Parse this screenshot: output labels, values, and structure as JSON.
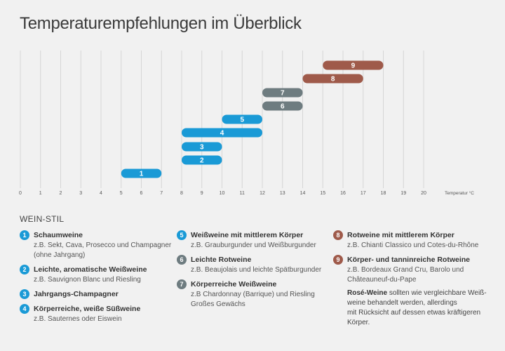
{
  "title": "Temperaturempfehlungen im Überblick",
  "legend_heading": "WEIN-STIL",
  "colors": {
    "blue": "#1a9ad6",
    "green": "#3f9e8c",
    "gray": "#6e7c80",
    "red": "#9f5a4a"
  },
  "chart_data": {
    "type": "bar",
    "orientation": "horizontal-range",
    "x_ticks": [
      "0",
      "1",
      "2",
      "3",
      "4",
      "5",
      "6",
      "7",
      "8",
      "9",
      "10",
      "11",
      "12",
      "13",
      "14",
      "15",
      "16",
      "17",
      "18",
      "19",
      "20"
    ],
    "xlim": [
      0,
      20
    ],
    "xlabel": "Temperatur °C",
    "grid": true,
    "bars": [
      {
        "label": "1",
        "start": 5,
        "end": 7,
        "color": "#1a9ad6"
      },
      {
        "label": "2",
        "start": 8,
        "end": 10,
        "color": "#1a9ad6"
      },
      {
        "label": "3",
        "start": 8,
        "end": 10,
        "color": "#1a9ad6"
      },
      {
        "label": "4",
        "start": 8,
        "end": 12,
        "color": "#1a9ad6"
      },
      {
        "label": "5",
        "start": 10,
        "end": 12,
        "color": "#1a9ad6"
      },
      {
        "label": "6",
        "start": 12,
        "end": 14,
        "color": "#6e7c80"
      },
      {
        "label": "7",
        "start": 12,
        "end": 14,
        "color": "#6e7c80"
      },
      {
        "label": "8",
        "start": 14,
        "end": 17,
        "color": "#9f5a4a"
      },
      {
        "label": "9",
        "start": 15,
        "end": 18,
        "color": "#9f5a4a"
      }
    ]
  },
  "legend": {
    "col1": [
      {
        "num": "1",
        "color": "#1a9ad6",
        "title": "Schaumweine",
        "desc": "z.B. Sekt, Cava, Prosecco und Champagner\n(ohne Jahrgang)"
      },
      {
        "num": "2",
        "color": "#1a9ad6",
        "title": "Leichte, aromatische Weißweine",
        "desc": "z.B. Sauvignon Blanc und Riesling"
      },
      {
        "num": "3",
        "color": "#1a9ad6",
        "title": "Jahrgangs-Champagner",
        "desc": ""
      },
      {
        "num": "4",
        "color": "#1a9ad6",
        "title": "Körperreiche, weiße Süßweine",
        "desc": "z.B. Sauternes oder Eiswein"
      }
    ],
    "col2": [
      {
        "num": "5",
        "color": "#1a9ad6",
        "title": "Weißweine mit mittlerem Körper",
        "desc": "z.B. Grauburgunder und Weißburgunder"
      },
      {
        "num": "6",
        "color": "#6e7c80",
        "title": "Leichte Rotweine",
        "desc": "z.B. Beaujolais und leichte Spätburgunder"
      },
      {
        "num": "7",
        "color": "#6e7c80",
        "title": "Körperreiche Weißweine",
        "desc": "z.B Chardonnay (Barrique) und Riesling\nGroßes Gewächs"
      }
    ],
    "col3": [
      {
        "num": "8",
        "color": "#9f5a4a",
        "title": "Rotweine mit mittlerem Körper",
        "desc": "z.B. Chianti Classico und Cotes-du-Rhône"
      },
      {
        "num": "9",
        "color": "#9f5a4a",
        "title": "Körper- und tanninreiche Rotweine",
        "desc": "z.B. Bordeaux Grand Cru, Barolo und\nChâteauneuf-du-Pape"
      }
    ],
    "note_bold": "Rosé-Weine",
    "note_text": " sollten wie vergleichbare Weiß-\nweine behandelt werden, allerdings\nmit Rücksicht auf dessen etwas kräftigeren\nKörper."
  }
}
